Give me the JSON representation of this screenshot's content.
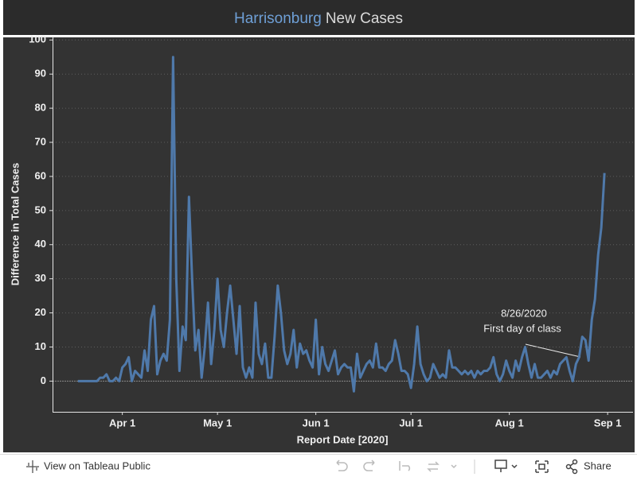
{
  "chart_data": {
    "type": "line",
    "title": {
      "highlight": "Harrisonburg",
      "text": "New Cases"
    },
    "xlabel": "Report Date [2020]",
    "ylabel": "Difference in Total Cases",
    "color": "#4f79aa",
    "x": [
      "2020-03-18",
      "2020-03-19",
      "2020-03-20",
      "2020-03-21",
      "2020-03-22",
      "2020-03-23",
      "2020-03-24",
      "2020-03-25",
      "2020-03-26",
      "2020-03-27",
      "2020-03-28",
      "2020-03-29",
      "2020-03-30",
      "2020-03-31",
      "2020-04-01",
      "2020-04-02",
      "2020-04-03",
      "2020-04-04",
      "2020-04-05",
      "2020-04-06",
      "2020-04-07",
      "2020-04-08",
      "2020-04-09",
      "2020-04-10",
      "2020-04-11",
      "2020-04-12",
      "2020-04-13",
      "2020-04-14",
      "2020-04-15",
      "2020-04-16",
      "2020-04-17",
      "2020-04-18",
      "2020-04-19",
      "2020-04-20",
      "2020-04-21",
      "2020-04-22",
      "2020-04-23",
      "2020-04-24",
      "2020-04-25",
      "2020-04-26",
      "2020-04-27",
      "2020-04-28",
      "2020-04-29",
      "2020-04-30",
      "2020-05-01",
      "2020-05-02",
      "2020-05-03",
      "2020-05-04",
      "2020-05-05",
      "2020-05-06",
      "2020-05-07",
      "2020-05-08",
      "2020-05-09",
      "2020-05-10",
      "2020-05-11",
      "2020-05-12",
      "2020-05-13",
      "2020-05-14",
      "2020-05-15",
      "2020-05-16",
      "2020-05-17",
      "2020-05-18",
      "2020-05-19",
      "2020-05-20",
      "2020-05-21",
      "2020-05-22",
      "2020-05-23",
      "2020-05-24",
      "2020-05-25",
      "2020-05-26",
      "2020-05-27",
      "2020-05-28",
      "2020-05-29",
      "2020-05-30",
      "2020-05-31",
      "2020-06-01",
      "2020-06-02",
      "2020-06-03",
      "2020-06-04",
      "2020-06-05",
      "2020-06-06",
      "2020-06-07",
      "2020-06-08",
      "2020-06-09",
      "2020-06-10",
      "2020-06-11",
      "2020-06-12",
      "2020-06-13",
      "2020-06-14",
      "2020-06-15",
      "2020-06-16",
      "2020-06-17",
      "2020-06-18",
      "2020-06-19",
      "2020-06-20",
      "2020-06-21",
      "2020-06-22",
      "2020-06-23",
      "2020-06-24",
      "2020-06-25",
      "2020-06-26",
      "2020-06-27",
      "2020-06-28",
      "2020-06-29",
      "2020-06-30",
      "2020-07-01",
      "2020-07-02",
      "2020-07-03",
      "2020-07-04",
      "2020-07-05",
      "2020-07-06",
      "2020-07-07",
      "2020-07-08",
      "2020-07-09",
      "2020-07-10",
      "2020-07-11",
      "2020-07-12",
      "2020-07-13",
      "2020-07-14",
      "2020-07-15",
      "2020-07-16",
      "2020-07-17",
      "2020-07-18",
      "2020-07-19",
      "2020-07-20",
      "2020-07-21",
      "2020-07-22",
      "2020-07-23",
      "2020-07-24",
      "2020-07-25",
      "2020-07-26",
      "2020-07-27",
      "2020-07-28",
      "2020-07-29",
      "2020-07-30",
      "2020-07-31",
      "2020-08-01",
      "2020-08-02",
      "2020-08-03",
      "2020-08-04",
      "2020-08-05",
      "2020-08-06",
      "2020-08-07",
      "2020-08-08",
      "2020-08-09",
      "2020-08-10",
      "2020-08-11",
      "2020-08-12",
      "2020-08-13",
      "2020-08-14",
      "2020-08-15",
      "2020-08-16",
      "2020-08-17",
      "2020-08-18",
      "2020-08-19",
      "2020-08-20",
      "2020-08-21",
      "2020-08-22",
      "2020-08-23",
      "2020-08-24",
      "2020-08-25",
      "2020-08-26",
      "2020-08-27",
      "2020-08-28",
      "2020-08-29",
      "2020-08-30",
      "2020-08-31"
    ],
    "values": [
      0,
      0,
      0,
      0,
      0,
      0,
      0,
      1,
      1,
      2,
      0,
      0,
      1,
      0,
      4,
      5,
      7,
      0,
      3,
      2,
      1,
      9,
      3,
      18,
      22,
      2,
      6,
      8,
      6,
      18,
      95,
      30,
      3,
      16,
      12,
      54,
      30,
      9,
      15,
      1,
      10,
      23,
      5,
      15,
      30,
      15,
      10,
      20,
      28,
      18,
      8,
      22,
      4,
      1,
      4,
      1,
      23,
      8,
      5,
      11,
      1,
      1,
      13,
      28,
      20,
      9,
      5,
      8,
      15,
      4,
      11,
      8,
      9,
      6,
      4,
      18,
      2,
      10,
      5,
      3,
      6,
      9,
      2,
      4,
      5,
      4,
      4,
      -3,
      8,
      1,
      3,
      5,
      6,
      4,
      11,
      4,
      4,
      3,
      5,
      6,
      12,
      8,
      3,
      3,
      2,
      -2,
      5,
      16,
      5,
      2,
      0,
      1,
      5,
      3,
      1,
      2,
      1,
      9,
      4,
      4,
      3,
      2,
      3,
      2,
      3,
      1,
      3,
      2,
      3,
      3,
      4,
      7,
      2,
      0,
      2,
      6,
      3,
      1,
      6,
      3,
      7,
      10,
      5,
      1,
      5,
      1,
      1,
      2,
      3,
      1,
      3,
      2,
      5,
      6,
      7,
      3,
      0,
      5,
      7,
      13,
      12,
      6,
      18,
      24,
      37,
      45,
      61
    ],
    "xlim": [
      "2020-03-10",
      "2020-09-09"
    ],
    "xticks": [
      {
        "value": "2020-04-01",
        "label": "Apr 1"
      },
      {
        "value": "2020-05-01",
        "label": "May 1"
      },
      {
        "value": "2020-06-01",
        "label": "Jun 1"
      },
      {
        "value": "2020-07-01",
        "label": "Jul 1"
      },
      {
        "value": "2020-08-01",
        "label": "Aug 1"
      },
      {
        "value": "2020-09-01",
        "label": "Sep 1"
      }
    ],
    "ylim": [
      -9,
      101
    ],
    "yticks": [
      0,
      10,
      20,
      30,
      40,
      50,
      60,
      70,
      80,
      90,
      100
    ],
    "grid": true,
    "annotation": {
      "date": "8/26/2020",
      "text": "First day of class"
    }
  },
  "toolbar": {
    "view": "View on Tableau Public",
    "share": "Share"
  }
}
